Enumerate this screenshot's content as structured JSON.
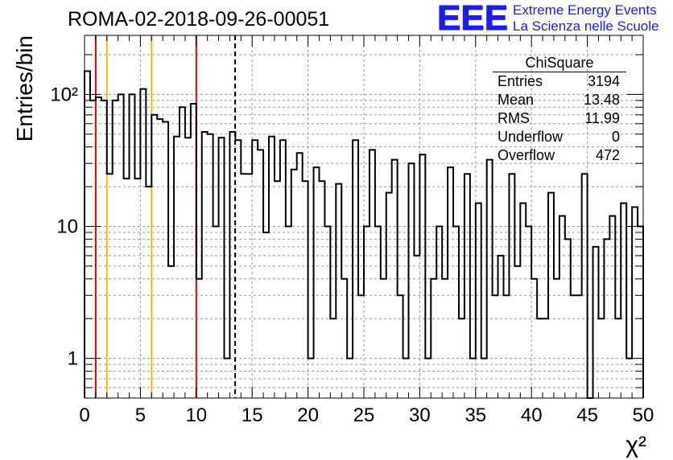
{
  "title": "ROMA-02-2018-09-26-00051",
  "logo": {
    "text": "EEE",
    "line1": "Extreme Energy Events",
    "line2": "La Scienza nelle Scuole",
    "color": "#1a1aff"
  },
  "stats": {
    "name": "ChiSquare",
    "rows": [
      {
        "label": "Entries",
        "value": "3194"
      },
      {
        "label": "Mean",
        "value": "13.48"
      },
      {
        "label": "RMS",
        "value": "11.99"
      },
      {
        "label": "Underflow",
        "value": "0"
      },
      {
        "label": "Overflow",
        "value": "472"
      }
    ]
  },
  "chart_data": {
    "type": "histogram",
    "ylabel": "Entries/bin",
    "xlabel": "χ²",
    "x_range": [
      0,
      50
    ],
    "y_range": [
      0.5,
      280
    ],
    "y_scale": "log",
    "bin_width": 0.5,
    "x_ticks": [
      0,
      5,
      10,
      15,
      20,
      25,
      30,
      35,
      40,
      45,
      50
    ],
    "y_tick_labels": [
      {
        "value": 1,
        "label": "1"
      },
      {
        "value": 10,
        "label": "10"
      },
      {
        "value": 100,
        "label": "10²"
      }
    ],
    "grid": true,
    "bin_counts": [
      150,
      90,
      95,
      90,
      25,
      90,
      100,
      23,
      100,
      23,
      110,
      20,
      70,
      65,
      62,
      5,
      48,
      80,
      47,
      85,
      4,
      52,
      50,
      10,
      47,
      1,
      52,
      45,
      25,
      25,
      45,
      38,
      9,
      48,
      22,
      45,
      10,
      27,
      36,
      22,
      1,
      28,
      22,
      10,
      2,
      21,
      4,
      1,
      45,
      3,
      10,
      38,
      10,
      4,
      18,
      32,
      3,
      1,
      30,
      6,
      35,
      1,
      4,
      10,
      4,
      28,
      10,
      2,
      25,
      1,
      15,
      1,
      32,
      3,
      6,
      3,
      25,
      5,
      15,
      10,
      4,
      2,
      2,
      18,
      4,
      12,
      8,
      3,
      3,
      25,
      0.4,
      7,
      2,
      8,
      12,
      2,
      15,
      1,
      14,
      10
    ],
    "vertical_lines": [
      {
        "x": 1,
        "color": "#e00000",
        "style": "solid"
      },
      {
        "x": 2,
        "color": "#f0c000",
        "style": "solid"
      },
      {
        "x": 6,
        "color": "#f0c000",
        "style": "solid"
      },
      {
        "x": 10,
        "color": "#e00000",
        "style": "solid"
      },
      {
        "x": 13.48,
        "color": "#000000",
        "style": "dashed"
      }
    ]
  }
}
